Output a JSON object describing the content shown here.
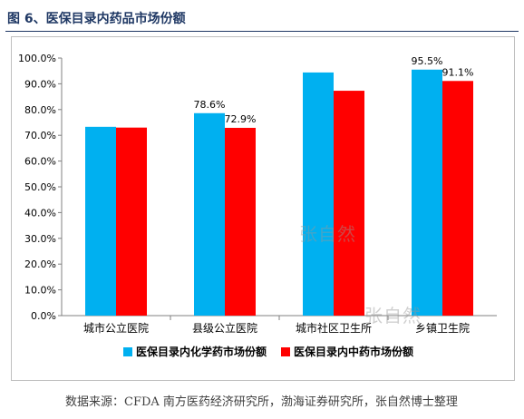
{
  "figure": {
    "title": "图 6、医保目录内药品市场份额",
    "source": "数据来源：CFDA 南方医药经济研究所，渤海证券研究所，张自然博士整理",
    "watermark": "张自然"
  },
  "colors": {
    "series1": "#00b0f0",
    "series2": "#ff0000"
  },
  "chart_data": {
    "type": "bar",
    "categories": [
      "城市公立医院",
      "县级公立医院",
      "城市社区卫生所",
      "乡镇卫生院"
    ],
    "series": [
      {
        "name": "医保目录内化学药市场份额",
        "values": [
          73.3,
          78.6,
          94.4,
          95.5
        ],
        "labels": [
          "",
          "78.6%",
          "",
          "95.5%"
        ]
      },
      {
        "name": "医保目录内中药市场份额",
        "values": [
          73.0,
          72.9,
          87.3,
          91.1
        ],
        "labels": [
          "",
          "72.9%",
          "",
          "91.1%"
        ]
      }
    ],
    "ylim": [
      0,
      100
    ],
    "yticks": [
      "0.0%",
      "10.0%",
      "20.0%",
      "30.0%",
      "40.0%",
      "50.0%",
      "60.0%",
      "70.0%",
      "80.0%",
      "90.0%",
      "100.0%"
    ],
    "grid": false,
    "legend": "bottom"
  }
}
